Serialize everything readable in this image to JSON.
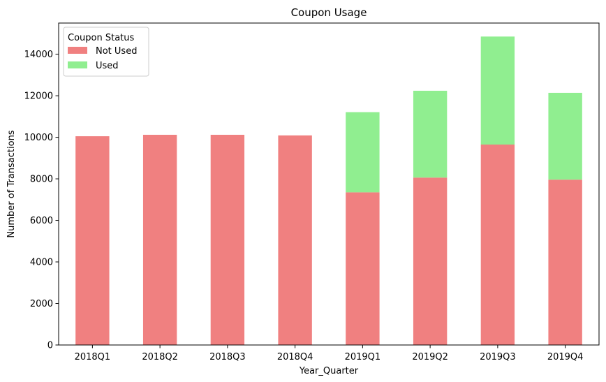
{
  "chart_data": {
    "type": "bar",
    "stacked": true,
    "title": "Coupon Usage",
    "xlabel": "Year_Quarter",
    "ylabel": "Number of Transactions",
    "categories": [
      "2018Q1",
      "2018Q2",
      "2018Q3",
      "2018Q4",
      "2019Q1",
      "2019Q2",
      "2019Q3",
      "2019Q4"
    ],
    "series": [
      {
        "name": "Not Used",
        "color": "#f08080",
        "values": [
          10050,
          10120,
          10120,
          10090,
          7350,
          8060,
          9650,
          7960
        ]
      },
      {
        "name": "Used",
        "color": "#90ee90",
        "values": [
          0,
          0,
          0,
          0,
          3860,
          4180,
          5200,
          4180
        ]
      }
    ],
    "ylim": [
      0,
      15500
    ],
    "yticks": [
      0,
      2000,
      4000,
      6000,
      8000,
      10000,
      12000,
      14000
    ],
    "legend": {
      "title": "Coupon Status",
      "placement": "top-left"
    },
    "grid": false
  }
}
